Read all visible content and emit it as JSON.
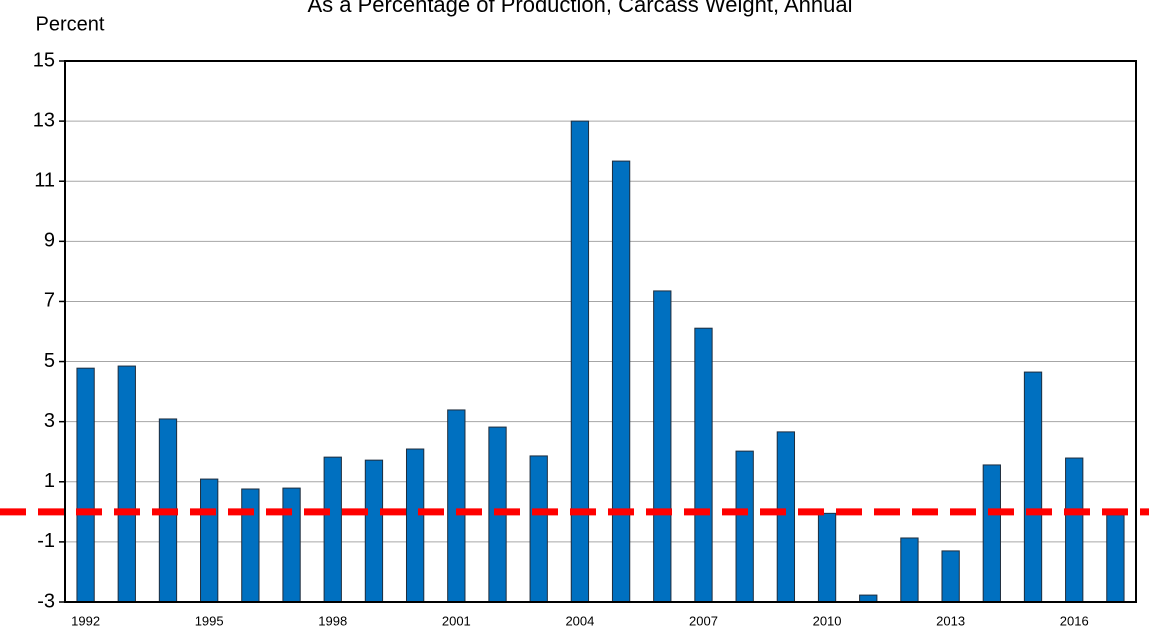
{
  "chart_data": {
    "type": "bar",
    "title": "As a Percentage of Production, Carcass Weight, Annual",
    "y_label": "Percent",
    "categories": [
      "1992",
      null,
      null,
      "1995",
      null,
      null,
      "1998",
      null,
      null,
      "2001",
      null,
      null,
      "2004",
      null,
      null,
      "2007",
      null,
      null,
      "2010",
      null,
      null,
      "2013",
      null,
      null,
      "2016",
      null
    ],
    "values": [
      4.78,
      4.85,
      3.09,
      1.09,
      0.76,
      0.79,
      1.82,
      1.72,
      2.09,
      3.39,
      2.82,
      1.86,
      13.0,
      11.67,
      7.35,
      6.11,
      2.02,
      2.66,
      -0.05,
      -2.77,
      -0.87,
      -1.3,
      1.56,
      4.65,
      1.79,
      -0.1
    ],
    "color": "#0070c0",
    "ylim": [
      -3,
      15
    ],
    "yticks": [
      -3,
      -1,
      1,
      3,
      5,
      7,
      9,
      11,
      13,
      15
    ],
    "grid": true,
    "reference_line": {
      "value": 0,
      "color": "#ff0000"
    }
  }
}
